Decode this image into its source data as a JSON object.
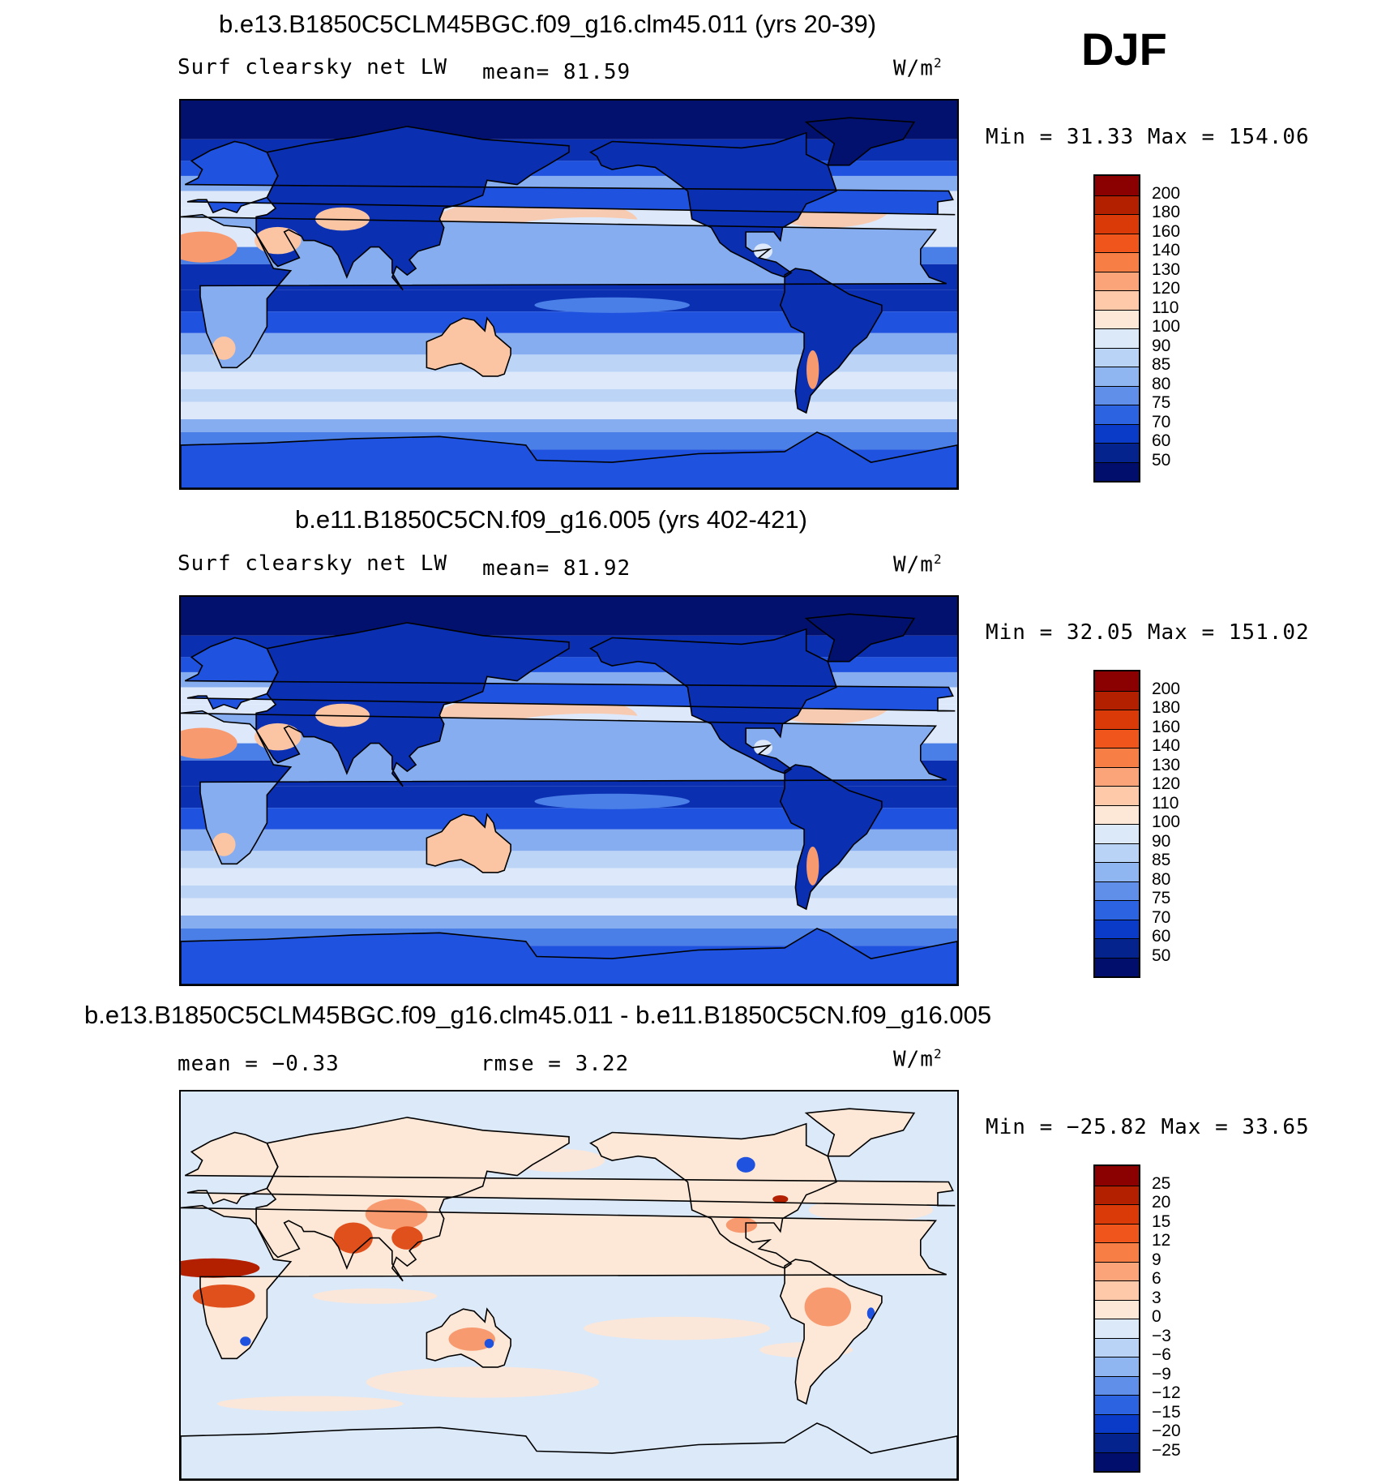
{
  "season_label": "DJF",
  "panels": [
    {
      "title": "b.e13.B1850C5CLM45BGC.f09_g16.clm45.011 (yrs 20-39)",
      "variable": "Surf clearsky net LW",
      "stat1": "mean=   81.59",
      "stat2": "",
      "units": "W/m",
      "units_sup": "2",
      "minmax": "Min =   31.33 Max = 154.06",
      "colorbar_labels": [
        "200",
        "180",
        "160",
        "140",
        "130",
        "120",
        "110",
        "100",
        "90",
        "85",
        "80",
        "75",
        "70",
        "60",
        "50"
      ],
      "colorbar_colors": [
        "#8b0000",
        "#b22000",
        "#d93a08",
        "#f0561c",
        "#f77e45",
        "#fba47a",
        "#fdc9a8",
        "#fde7d6",
        "#dce9f9",
        "#b8d3f5",
        "#8fb6f0",
        "#5f8fe8",
        "#2c63e0",
        "#0a3ac8",
        "#04238c",
        "#020e6b"
      ],
      "color_scale": [
        "#02116e",
        "#0a2fb0",
        "#1e52df",
        "#4b7fe8",
        "#86adf0",
        "#bcd5f7",
        "#dde9fb",
        "#fde7d6",
        "#fbc5a4",
        "#f79a6f",
        "#f06b3b",
        "#d9410e"
      ]
    },
    {
      "title": "b.e11.B1850C5CN.f09_g16.005 (yrs 402-421)",
      "variable": "Surf clearsky net LW",
      "stat1": "mean=   81.92",
      "stat2": "",
      "units": "W/m",
      "units_sup": "2",
      "minmax": "Min =   32.05 Max = 151.02",
      "colorbar_labels": [
        "200",
        "180",
        "160",
        "140",
        "130",
        "120",
        "110",
        "100",
        "90",
        "85",
        "80",
        "75",
        "70",
        "60",
        "50"
      ],
      "colorbar_colors": [
        "#8b0000",
        "#b22000",
        "#d93a08",
        "#f0561c",
        "#f77e45",
        "#fba47a",
        "#fdc9a8",
        "#fde7d6",
        "#dce9f9",
        "#b8d3f5",
        "#8fb6f0",
        "#5f8fe8",
        "#2c63e0",
        "#0a3ac8",
        "#04238c",
        "#020e6b"
      ],
      "color_scale": [
        "#02116e",
        "#0a2fb0",
        "#1e52df",
        "#4b7fe8",
        "#86adf0",
        "#bcd5f7",
        "#dde9fb",
        "#fde7d6",
        "#fbc5a4",
        "#f79a6f",
        "#f06b3b",
        "#d9410e"
      ]
    },
    {
      "title": "b.e13.B1850C5CLM45BGC.f09_g16.clm45.011 - b.e11.B1850C5CN.f09_g16.005",
      "variable": "",
      "stat1": "mean =   −0.33",
      "stat2": "rmse =    3.22",
      "units": "W/m",
      "units_sup": "2",
      "minmax": "Min = −25.82 Max =   33.65",
      "colorbar_labels": [
        "25",
        "20",
        "15",
        "12",
        "9",
        "6",
        "3",
        "0",
        "−3",
        "−6",
        "−9",
        "−12",
        "−15",
        "−20",
        "−25"
      ],
      "colorbar_colors": [
        "#8b0000",
        "#b22000",
        "#d93a08",
        "#f0561c",
        "#f77e45",
        "#fba47a",
        "#fdc9a8",
        "#fde7d6",
        "#dce9f9",
        "#b8d3f5",
        "#8fb6f0",
        "#5f8fe8",
        "#2c63e0",
        "#0a3ac8",
        "#04238c",
        "#020e6b"
      ],
      "color_scale": [
        "#1e52df",
        "#86adf0",
        "#bcd5f7",
        "#dce9f9",
        "#fde7d6",
        "#fbc5a4",
        "#f79a6f",
        "#e0501c",
        "#b22000"
      ]
    }
  ]
}
